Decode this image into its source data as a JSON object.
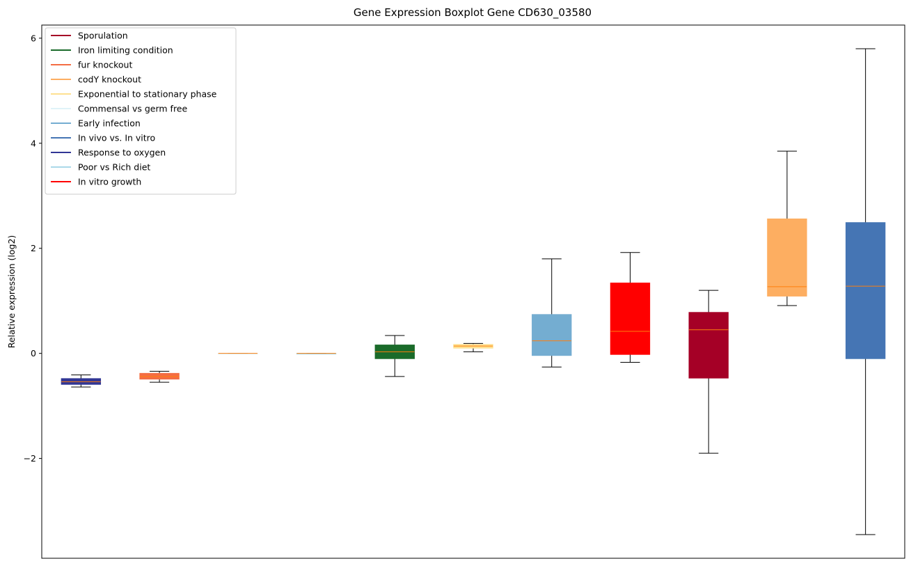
{
  "chart_data": {
    "type": "boxplot",
    "title": "Gene Expression Boxplot Gene CD630_03580",
    "xlabel": "",
    "ylabel": "Relative expression (log2)",
    "ylim": [
      -3.9,
      6.25
    ],
    "yticks": [
      -2,
      0,
      2,
      4,
      6
    ],
    "ytick_labels": [
      "−2",
      "0",
      "2",
      "4",
      "6"
    ],
    "grid": false,
    "legend_position": "top-left",
    "legend": [
      {
        "label": "Sporulation",
        "color": "#a50026"
      },
      {
        "label": "Iron limiting condition",
        "color": "#1a6b2a"
      },
      {
        "label": "fur knockout",
        "color": "#f46d43"
      },
      {
        "label": "codY knockout",
        "color": "#fdae61"
      },
      {
        "label": "Exponential to stationary phase",
        "color": "#fee090"
      },
      {
        "label": "Commensal vs germ free",
        "color": "#e0f3f8"
      },
      {
        "label": "Early infection",
        "color": "#74add1"
      },
      {
        "label": "In vivo vs. In vitro",
        "color": "#4575b4"
      },
      {
        "label": "Response to oxygen",
        "color": "#313695"
      },
      {
        "label": "Poor vs Rich diet",
        "color": "#abd9e9"
      },
      {
        "label": "In vitro growth",
        "color": "#ff0000"
      }
    ],
    "boxes": [
      {
        "color": "#313695",
        "whislo": -0.64,
        "q1": -0.59,
        "med": -0.54,
        "q3": -0.48,
        "whishi": -0.41
      },
      {
        "color": "#f46d43",
        "whislo": -0.55,
        "q1": -0.49,
        "med": -0.44,
        "q3": -0.38,
        "whishi": -0.34
      },
      {
        "color": "#e0f3f8",
        "whislo": 0.0,
        "q1": 0.0,
        "med": 0.0,
        "q3": 0.0,
        "whishi": 0.0
      },
      {
        "color": "#abd9e9",
        "whislo": 0.0,
        "q1": 0.0,
        "med": 0.0,
        "q3": 0.0,
        "whishi": 0.0
      },
      {
        "color": "#1a6b2a",
        "whislo": -0.44,
        "q1": -0.1,
        "med": 0.03,
        "q3": 0.16,
        "whishi": 0.34
      },
      {
        "color": "#fee090",
        "whislo": 0.03,
        "q1": 0.1,
        "med": 0.14,
        "q3": 0.17,
        "whishi": 0.19
      },
      {
        "color": "#74add1",
        "whislo": -0.26,
        "q1": -0.04,
        "med": 0.24,
        "q3": 0.74,
        "whishi": 1.8
      },
      {
        "color": "#ff0000",
        "whislo": -0.17,
        "q1": -0.02,
        "med": 0.42,
        "q3": 1.34,
        "whishi": 1.92
      },
      {
        "color": "#a50026",
        "whislo": -1.9,
        "q1": -0.47,
        "med": 0.45,
        "q3": 0.78,
        "whishi": 1.2
      },
      {
        "color": "#fdae61",
        "whislo": 0.91,
        "q1": 1.09,
        "med": 1.27,
        "q3": 2.56,
        "whishi": 3.85
      },
      {
        "color": "#4575b4",
        "whislo": -3.45,
        "q1": -0.1,
        "med": 1.28,
        "q3": 2.49,
        "whishi": 5.8
      }
    ],
    "median_color": "#ff7f0e"
  }
}
